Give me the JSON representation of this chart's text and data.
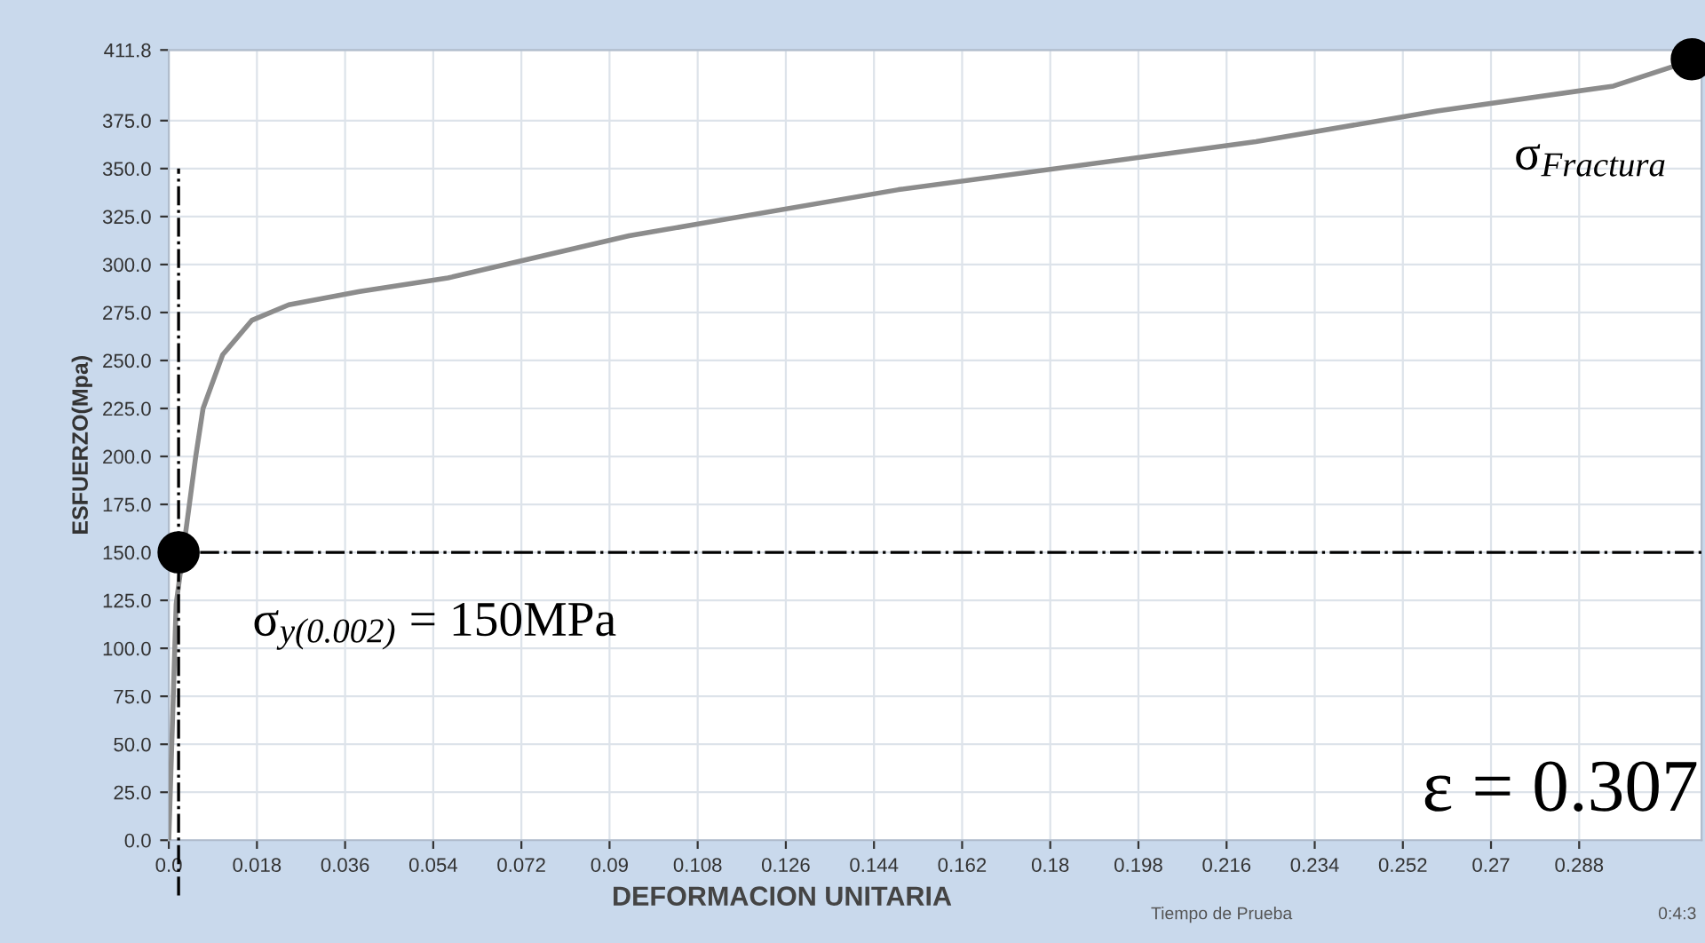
{
  "chart_data": {
    "type": "line",
    "xlabel": "DEFORMACION UNITARIA",
    "ylabel": "ESFUERZO(Mpa)",
    "xlim": [
      0,
      0.313
    ],
    "ylim": [
      0,
      411.8
    ],
    "xticks": [
      {
        "value": 0,
        "label": "0.0"
      },
      0.018,
      0.036,
      0.054,
      0.072,
      0.09,
      0.108,
      0.126,
      0.144,
      0.162,
      0.18,
      0.198,
      0.216,
      0.234,
      0.252,
      0.27,
      0.288
    ],
    "yticks": [
      {
        "value": 0,
        "label": "0.0"
      },
      {
        "value": 25,
        "label": "25.0"
      },
      {
        "value": 50,
        "label": "50.0"
      },
      {
        "value": 75,
        "label": "75.0"
      },
      {
        "value": 100,
        "label": "100.0"
      },
      {
        "value": 125,
        "label": "125.0"
      },
      {
        "value": 150,
        "label": "150.0"
      },
      {
        "value": 175,
        "label": "175.0"
      },
      {
        "value": 200,
        "label": "200.0"
      },
      {
        "value": 225,
        "label": "225.0"
      },
      {
        "value": 250,
        "label": "250.0"
      },
      {
        "value": 275,
        "label": "275.0"
      },
      {
        "value": 300,
        "label": "300.0"
      },
      {
        "value": 325,
        "label": "325.0"
      },
      {
        "value": 350,
        "label": "350.0"
      },
      {
        "value": 375,
        "label": "375.0"
      },
      {
        "value": 411.8,
        "label": "411.8"
      }
    ],
    "grid": true,
    "series": [
      {
        "color": "#8c8c8c",
        "x": [
          0,
          0.0015,
          0.0055,
          0.007,
          0.011,
          0.017,
          0.0245,
          0.039,
          0.057,
          0.094,
          0.149,
          0.222,
          0.259,
          0.295,
          0.307
        ],
        "values": [
          0,
          123,
          200,
          225,
          253,
          271,
          279,
          286,
          293,
          315,
          339,
          364,
          380,
          393,
          403
        ]
      },
      {
        "type": "scatter",
        "color": "#000000",
        "marker": "circle",
        "x": [
          0.002,
          0.311
        ],
        "values": [
          150,
          407
        ]
      }
    ],
    "ref_lines": [
      {
        "axis": "y",
        "value": 150,
        "color": "#000000",
        "line_style": "dashdot"
      },
      {
        "axis": "x",
        "value": 0.002,
        "color": "#000000",
        "line_style": "dashdot"
      }
    ],
    "annotations": [
      {
        "text": "σ$_{y(0.002)}$ = 150MPa",
        "x": 0.002,
        "y": 150
      },
      {
        "text": "σ$_{Fractura}$",
        "x": 0.311,
        "y": 407
      },
      "ε = 0.307",
      "Tiempo de Prueba",
      "0:4:3"
    ]
  }
}
